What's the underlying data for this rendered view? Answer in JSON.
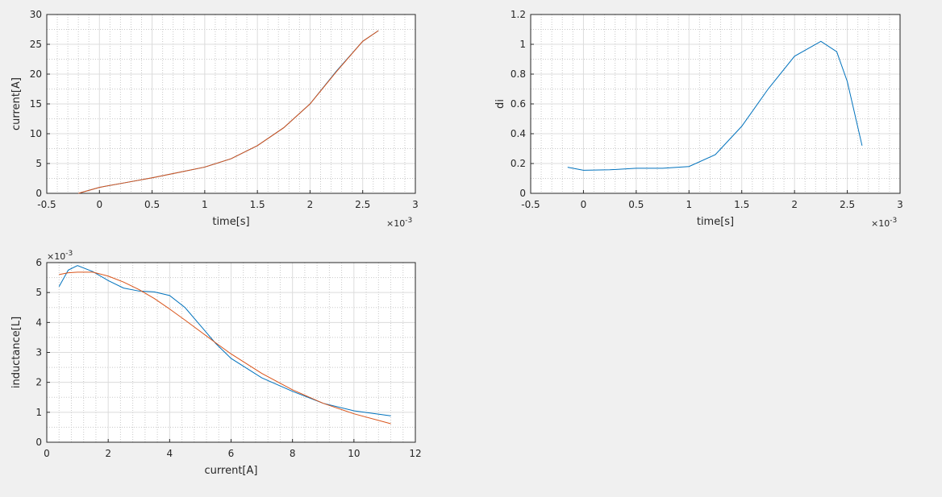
{
  "chart_data": [
    {
      "type": "line",
      "x_label": "time[s]",
      "y_label": "current[A]",
      "xlim": [
        -0.5,
        3
      ],
      "xticks": [
        -0.5,
        0,
        0.5,
        1,
        1.5,
        2,
        2.5,
        3
      ],
      "ylim": [
        0,
        30
      ],
      "yticks": [
        0,
        5,
        10,
        15,
        20,
        25,
        30
      ],
      "x_exponent_base": "×10",
      "x_exponent": "-3",
      "grid": true,
      "minor_grid": true,
      "x": [
        -0.2,
        0,
        0.25,
        0.5,
        0.75,
        1,
        1.25,
        1.5,
        1.75,
        2,
        2.25,
        2.5,
        2.65
      ],
      "series": [
        {
          "color": "#0072bd",
          "values": [
            0,
            1,
            1.8,
            2.6,
            3.5,
            4.4,
            5.8,
            8,
            11,
            15,
            20.5,
            25.5,
            27.3
          ]
        },
        {
          "color": "#d95319",
          "values": [
            0,
            1,
            1.8,
            2.6,
            3.5,
            4.4,
            5.8,
            8,
            11,
            15,
            20.4,
            25.5,
            27.3
          ]
        }
      ]
    },
    {
      "type": "line",
      "x_label": "time[s]",
      "y_label": "di",
      "xlim": [
        -0.5,
        3
      ],
      "xticks": [
        -0.5,
        0,
        0.5,
        1,
        1.5,
        2,
        2.5,
        3
      ],
      "ylim": [
        0,
        1.2
      ],
      "yticks": [
        0,
        0.2,
        0.4,
        0.6,
        0.8,
        1,
        1.2
      ],
      "x_exponent_base": "×10",
      "x_exponent": "-3",
      "grid": true,
      "minor_grid": true,
      "x": [
        -0.15,
        0,
        0.25,
        0.5,
        0.75,
        1,
        1.25,
        1.5,
        1.75,
        2,
        2.25,
        2.4,
        2.5,
        2.64
      ],
      "series": [
        {
          "color": "#0072bd",
          "values": [
            0.175,
            0.155,
            0.158,
            0.168,
            0.168,
            0.18,
            0.26,
            0.45,
            0.7,
            0.92,
            1.02,
            0.95,
            0.75,
            0.32
          ]
        }
      ]
    },
    {
      "type": "line",
      "x_label": "current[A]",
      "y_label": "inductance[L]",
      "xlim": [
        0,
        12
      ],
      "xticks": [
        0,
        2,
        4,
        6,
        8,
        10,
        12
      ],
      "ylim": [
        0,
        6
      ],
      "yticks": [
        0,
        1,
        2,
        3,
        4,
        5,
        6
      ],
      "y_exponent_base": "×10",
      "y_exponent": "-3",
      "grid": true,
      "minor_grid": true,
      "x": [
        0.4,
        0.7,
        1,
        1.5,
        2,
        2.5,
        3,
        3.5,
        4,
        4.5,
        5,
        5.5,
        6,
        7,
        8,
        9,
        10,
        11.2
      ],
      "series": [
        {
          "color": "#0072bd",
          "values": [
            5.2,
            5.75,
            5.9,
            5.7,
            5.4,
            5.15,
            5.05,
            5.02,
            4.9,
            4.5,
            3.9,
            3.3,
            2.8,
            2.15,
            1.7,
            1.3,
            1.05,
            0.88
          ]
        },
        {
          "color": "#d95319",
          "values": [
            5.6,
            5.66,
            5.68,
            5.68,
            5.55,
            5.35,
            5.1,
            4.8,
            4.45,
            4.08,
            3.7,
            3.32,
            2.95,
            2.3,
            1.75,
            1.3,
            0.95,
            0.62
          ]
        }
      ]
    }
  ]
}
